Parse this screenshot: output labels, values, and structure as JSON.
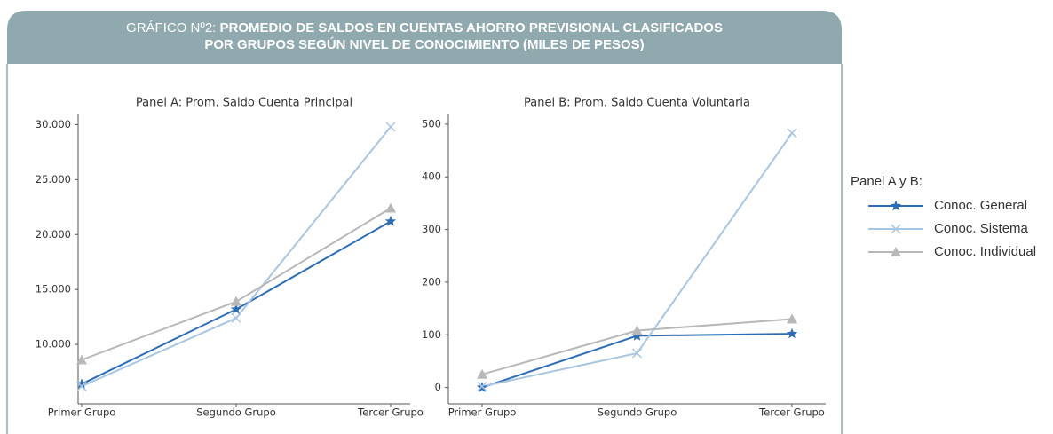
{
  "header": {
    "label": "GRÁFICO Nº2:",
    "title_lines": [
      "PROMEDIO DE SALDOS EN CUENTAS AHORRO PREVISIONAL CLASIFICADOS",
      "POR GRUPOS SEGÚN NIVEL DE CONOCIMIENTO (MILES DE PESOS)"
    ]
  },
  "legend": {
    "title": "Panel A y B:"
  },
  "chart_data": [
    {
      "type": "line",
      "title": "Panel A: Prom. Saldo Cuenta Principal",
      "categories": [
        "Primer Grupo",
        "Segundo Grupo",
        "Tercer Grupo"
      ],
      "series": [
        {
          "name": "Conoc. General",
          "color": "#2e6db4",
          "marker": "star",
          "values": [
            6400,
            13200,
            21200
          ]
        },
        {
          "name": "Conoc. Sistema",
          "color": "#a9c6e0",
          "marker": "x",
          "values": [
            6200,
            12400,
            29800
          ]
        },
        {
          "name": "Conoc. Individual",
          "color": "#b8b8b8",
          "marker": "triangle",
          "values": [
            8600,
            13900,
            22400
          ]
        }
      ],
      "ylim": [
        4600,
        31000
      ],
      "yticks": [
        {
          "value": 10000,
          "label": "10.000"
        },
        {
          "value": 15000,
          "label": "15.000"
        },
        {
          "value": 20000,
          "label": "20.000"
        },
        {
          "value": 25000,
          "label": "25.000"
        },
        {
          "value": 30000,
          "label": "30.000"
        }
      ]
    },
    {
      "type": "line",
      "title": "Panel B: Prom. Saldo Cuenta Voluntaria",
      "categories": [
        "Primer Grupo",
        "Segundo Grupo",
        "Tercer Grupo"
      ],
      "series": [
        {
          "name": "Conoc. General",
          "color": "#2e6db4",
          "marker": "star",
          "values": [
            0,
            98,
            102
          ]
        },
        {
          "name": "Conoc. Sistema",
          "color": "#a9c6e0",
          "marker": "x",
          "values": [
            2,
            65,
            483
          ]
        },
        {
          "name": "Conoc. Individual",
          "color": "#b8b8b8",
          "marker": "triangle",
          "values": [
            25,
            108,
            130
          ]
        }
      ],
      "ylim": [
        -31,
        520
      ],
      "yticks": [
        0,
        100,
        200,
        300,
        400,
        500
      ]
    }
  ]
}
